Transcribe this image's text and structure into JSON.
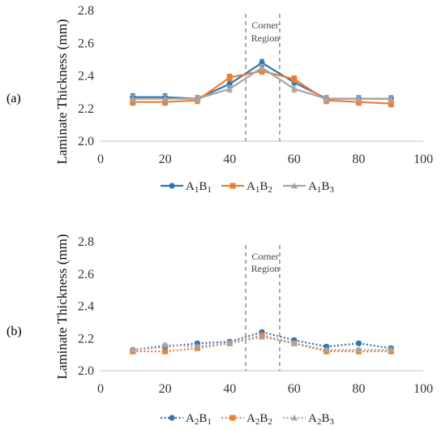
{
  "chart_data": [
    {
      "panel_label": "(a)",
      "type": "line",
      "ylabel": "Laminate Thickness (mm)",
      "xlim": [
        0,
        100
      ],
      "ylim": [
        2.0,
        2.8
      ],
      "xticks": [
        "0",
        "20",
        "40",
        "60",
        "80",
        "100"
      ],
      "yticks": [
        "2.0",
        "2.2",
        "2.4",
        "2.6",
        "2.8"
      ],
      "annotation": {
        "line1": "Corner",
        "line2": "Region",
        "x_from": 45,
        "x_to": 55.5
      },
      "legend_position": "bottom",
      "x": [
        10,
        20,
        30,
        40,
        50,
        60,
        70,
        80,
        90
      ],
      "series": [
        {
          "name": "A1B1",
          "base": "A",
          "sub1": "1",
          "mid": "B",
          "sub2": "1",
          "color": "#2E75B6",
          "marker": "circle",
          "dash": "solid",
          "values": [
            2.27,
            2.27,
            2.26,
            2.35,
            2.48,
            2.36,
            2.26,
            2.26,
            2.26
          ],
          "error": [
            0.02,
            0.02,
            0.02,
            0.02,
            0.02,
            0.02,
            0.02,
            0.02,
            0.02
          ]
        },
        {
          "name": "A1B2",
          "base": "A",
          "sub1": "1",
          "mid": "B",
          "sub2": "2",
          "color": "#ED7D31",
          "marker": "square",
          "dash": "solid",
          "values": [
            2.24,
            2.24,
            2.25,
            2.39,
            2.43,
            2.38,
            2.25,
            2.24,
            2.23
          ],
          "error": [
            0.02,
            0.02,
            0.02,
            0.02,
            0.02,
            0.02,
            0.02,
            0.02,
            0.02
          ]
        },
        {
          "name": "A1B3",
          "base": "A",
          "sub1": "1",
          "mid": "B",
          "sub2": "3",
          "color": "#A5A5A5",
          "marker": "triangle",
          "dash": "solid",
          "values": [
            2.26,
            2.26,
            2.26,
            2.32,
            2.45,
            2.32,
            2.26,
            2.26,
            2.26
          ],
          "error": [
            0.02,
            0.02,
            0.02,
            0.02,
            0.02,
            0.02,
            0.02,
            0.02,
            0.02
          ]
        }
      ]
    },
    {
      "panel_label": "(b)",
      "type": "line",
      "ylabel": "Laminate Thickness (mm)",
      "xlim": [
        0,
        100
      ],
      "ylim": [
        2.0,
        2.8
      ],
      "xticks": [
        "0",
        "20",
        "40",
        "60",
        "80",
        "100"
      ],
      "yticks": [
        "2.0",
        "2.2",
        "2.4",
        "2.6",
        "2.8"
      ],
      "annotation": {
        "line1": "Corner",
        "line2": "Region",
        "x_from": 45,
        "x_to": 55.5
      },
      "legend_position": "bottom",
      "x": [
        10,
        20,
        30,
        40,
        50,
        60,
        70,
        80,
        90
      ],
      "series": [
        {
          "name": "A2B1",
          "base": "A",
          "sub1": "2",
          "mid": "B",
          "sub2": "1",
          "color": "#2E75B6",
          "marker": "circle",
          "dash": "dotted",
          "values": [
            2.13,
            2.15,
            2.17,
            2.18,
            2.24,
            2.19,
            2.15,
            2.17,
            2.14
          ],
          "error": [
            0.01,
            0.01,
            0.01,
            0.01,
            0.01,
            0.01,
            0.01,
            0.01,
            0.01
          ]
        },
        {
          "name": "A2B2",
          "base": "A",
          "sub1": "2",
          "mid": "B",
          "sub2": "2",
          "color": "#ED7D31",
          "marker": "square",
          "dash": "dotted",
          "values": [
            2.12,
            2.12,
            2.14,
            2.17,
            2.22,
            2.17,
            2.12,
            2.12,
            2.12
          ],
          "error": [
            0.01,
            0.01,
            0.01,
            0.01,
            0.01,
            0.01,
            0.01,
            0.01,
            0.01
          ]
        },
        {
          "name": "A2B3",
          "base": "A",
          "sub1": "2",
          "mid": "B",
          "sub2": "3",
          "color": "#A5A5A5",
          "marker": "triangle",
          "dash": "dotted",
          "values": [
            2.13,
            2.16,
            2.15,
            2.17,
            2.21,
            2.17,
            2.13,
            2.13,
            2.13
          ],
          "error": [
            0.01,
            0.01,
            0.01,
            0.01,
            0.01,
            0.01,
            0.01,
            0.01,
            0.01
          ]
        }
      ]
    }
  ]
}
